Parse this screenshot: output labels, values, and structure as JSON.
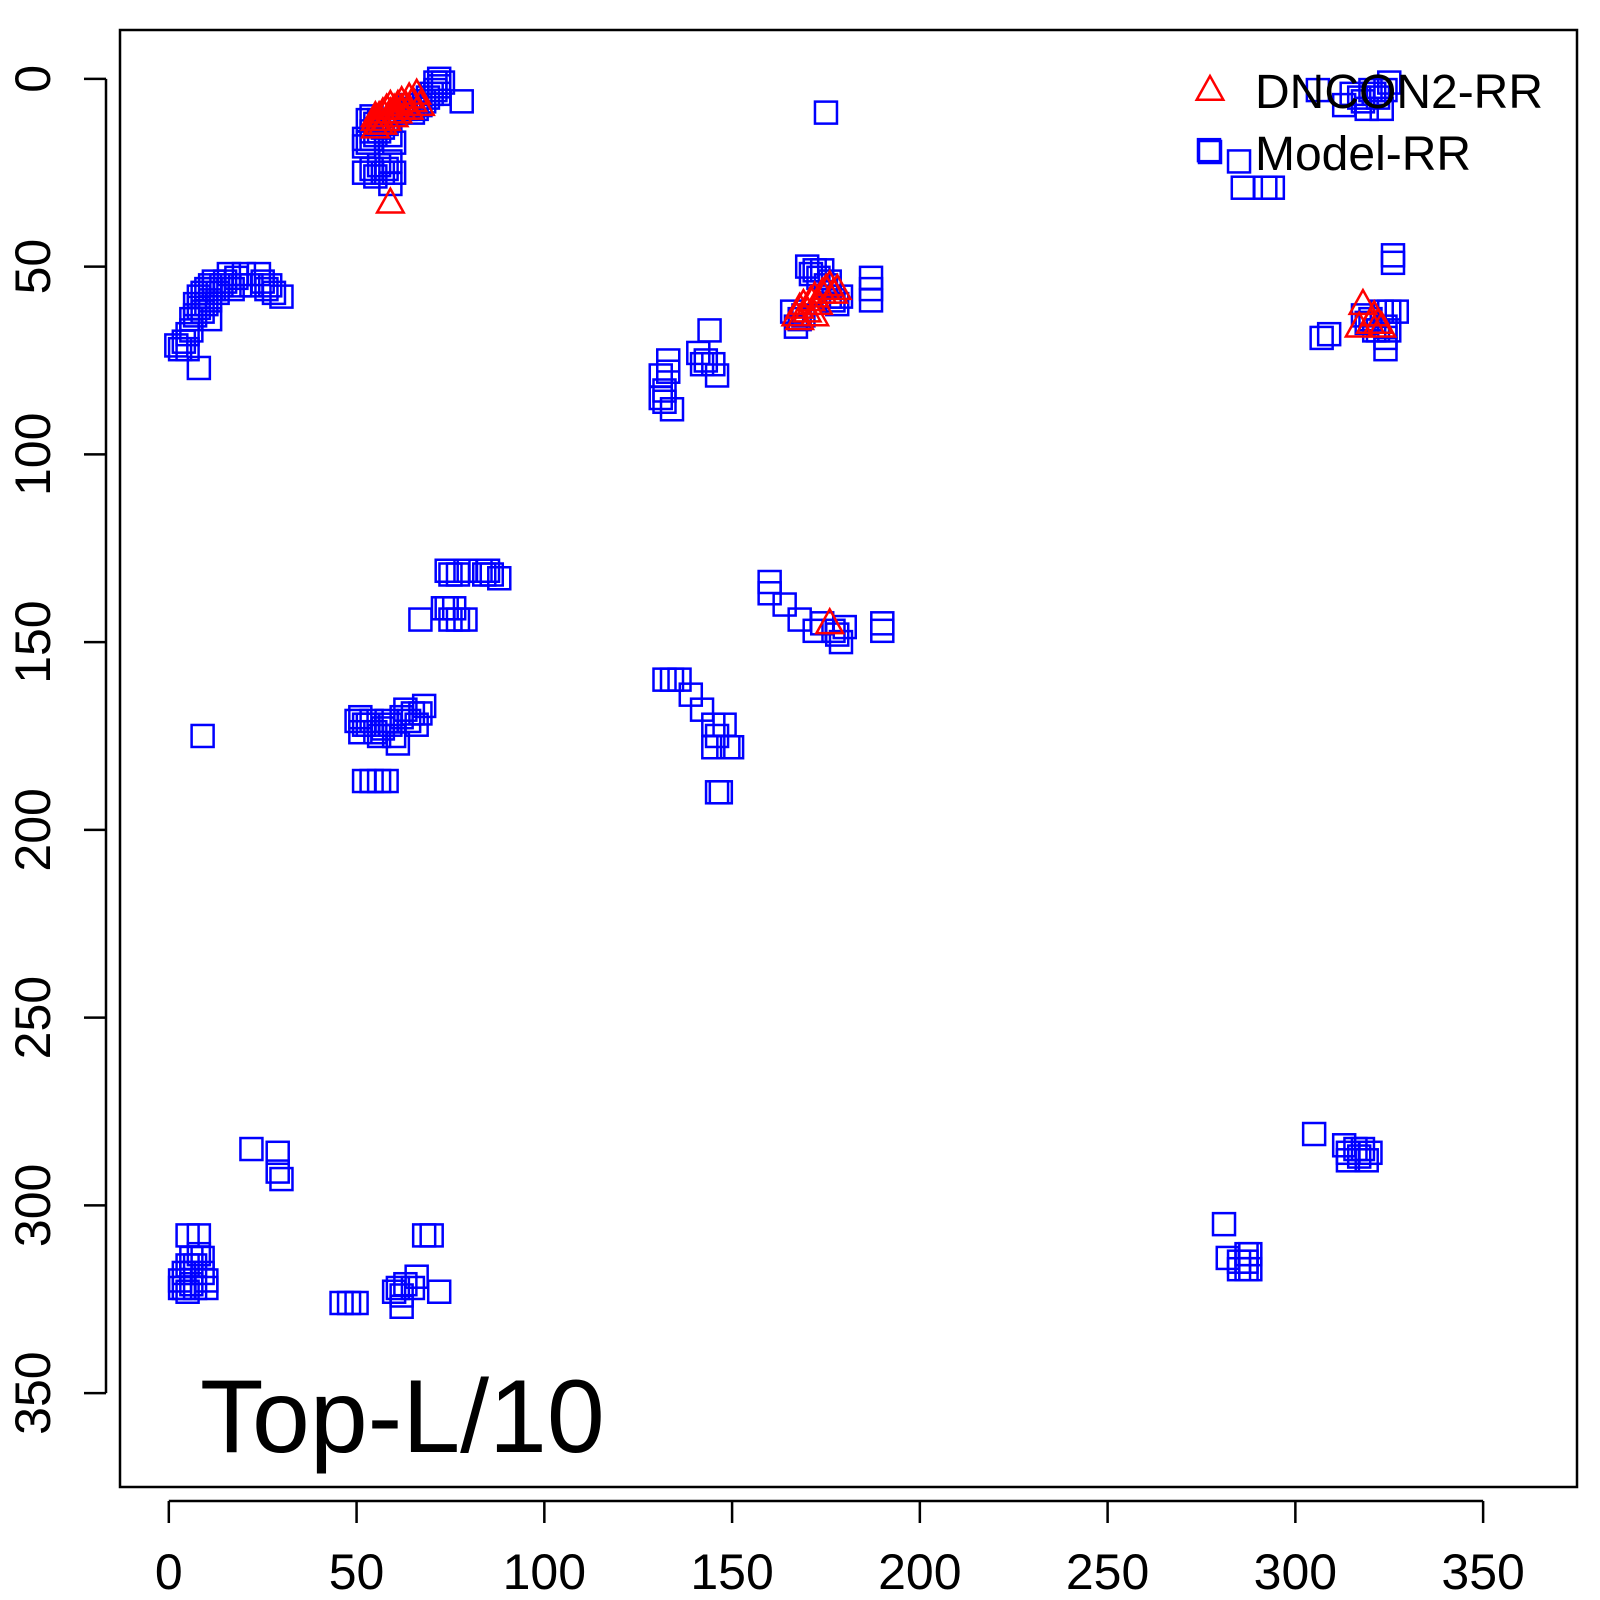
{
  "chart_data": {
    "type": "scatter",
    "title": "",
    "annotation": "Top-L/10",
    "xlim": [
      -13,
      375
    ],
    "ylim": [
      -13,
      375
    ],
    "y_inverted": true,
    "x_ticks": [
      0,
      50,
      100,
      150,
      200,
      250,
      300,
      350
    ],
    "y_ticks": [
      0,
      50,
      100,
      150,
      200,
      250,
      300,
      350
    ],
    "x_tick_labels": [
      "0",
      "50",
      "100",
      "150",
      "200",
      "250",
      "300",
      "350"
    ],
    "y_tick_labels": [
      "0",
      "50",
      "100",
      "150",
      "200",
      "250",
      "300",
      "350"
    ],
    "legend_position": "top-right",
    "series": [
      {
        "name": "DNCON2-RR",
        "marker": "triangle",
        "color": "#ff0000",
        "points": [
          [
            55,
            13
          ],
          [
            55,
            11
          ],
          [
            56,
            10
          ],
          [
            57,
            9
          ],
          [
            57,
            12
          ],
          [
            58,
            8
          ],
          [
            58,
            11
          ],
          [
            59,
            9
          ],
          [
            59,
            7
          ],
          [
            60,
            8
          ],
          [
            60,
            10
          ],
          [
            61,
            7
          ],
          [
            61,
            9
          ],
          [
            62,
            6
          ],
          [
            62,
            8
          ],
          [
            63,
            7
          ],
          [
            64,
            5
          ],
          [
            64,
            8
          ],
          [
            65,
            6
          ],
          [
            66,
            4
          ],
          [
            67,
            7
          ],
          [
            55,
            10
          ],
          [
            56,
            12
          ],
          [
            59,
            33
          ],
          [
            167,
            63
          ],
          [
            168,
            61
          ],
          [
            169,
            60
          ],
          [
            170,
            62
          ],
          [
            171,
            59
          ],
          [
            172,
            58
          ],
          [
            173,
            60
          ],
          [
            174,
            57
          ],
          [
            175,
            56
          ],
          [
            176,
            55
          ],
          [
            177,
            57
          ],
          [
            178,
            56
          ],
          [
            168,
            64
          ],
          [
            172,
            63
          ],
          [
            176,
            145
          ],
          [
            317,
            66
          ],
          [
            318,
            60
          ],
          [
            320,
            65
          ],
          [
            321,
            63
          ],
          [
            322,
            65
          ],
          [
            323,
            66
          ]
        ]
      },
      {
        "name": "Model-RR",
        "marker": "square",
        "color": "#0000ff",
        "points": [
          [
            52,
            16
          ],
          [
            52,
            18
          ],
          [
            53,
            17
          ],
          [
            54,
            14
          ],
          [
            54,
            16
          ],
          [
            55,
            12
          ],
          [
            55,
            15
          ],
          [
            56,
            14
          ],
          [
            57,
            13
          ],
          [
            58,
            12
          ],
          [
            59,
            15
          ],
          [
            60,
            17
          ],
          [
            53,
            11
          ],
          [
            54,
            10
          ],
          [
            56,
            11
          ],
          [
            52,
            25
          ],
          [
            54,
            24
          ],
          [
            55,
            26
          ],
          [
            56,
            23
          ],
          [
            57,
            25
          ],
          [
            58,
            24
          ],
          [
            59,
            28
          ],
          [
            60,
            25
          ],
          [
            59,
            22
          ],
          [
            63,
            8
          ],
          [
            64,
            7
          ],
          [
            65,
            9
          ],
          [
            66,
            8
          ],
          [
            67,
            7
          ],
          [
            68,
            6
          ],
          [
            69,
            5
          ],
          [
            70,
            4
          ],
          [
            71,
            3
          ],
          [
            71,
            1
          ],
          [
            72,
            0
          ],
          [
            72,
            2
          ],
          [
            72,
            4
          ],
          [
            73,
            1
          ],
          [
            78,
            6
          ],
          [
            175,
            9
          ],
          [
            2,
            71
          ],
          [
            3,
            72
          ],
          [
            4,
            70
          ],
          [
            5,
            72
          ],
          [
            5,
            68
          ],
          [
            6,
            67
          ],
          [
            6,
            64
          ],
          [
            7,
            63
          ],
          [
            7,
            60
          ],
          [
            8,
            61
          ],
          [
            8,
            58
          ],
          [
            9,
            57
          ],
          [
            9,
            62
          ],
          [
            10,
            60
          ],
          [
            10,
            56
          ],
          [
            11,
            59
          ],
          [
            11,
            55
          ],
          [
            12,
            56
          ],
          [
            12,
            54
          ],
          [
            13,
            57
          ],
          [
            14,
            55
          ],
          [
            15,
            54
          ],
          [
            16,
            52
          ],
          [
            17,
            56
          ],
          [
            18,
            53
          ],
          [
            19,
            55
          ],
          [
            20,
            52
          ],
          [
            22,
            55
          ],
          [
            24,
            52
          ],
          [
            25,
            54
          ],
          [
            26,
            56
          ],
          [
            27,
            55
          ],
          [
            28,
            57
          ],
          [
            30,
            58
          ],
          [
            11,
            64
          ],
          [
            8,
            77
          ],
          [
            131,
            79
          ],
          [
            131,
            85
          ],
          [
            132,
            83
          ],
          [
            132,
            86
          ],
          [
            133,
            75
          ],
          [
            133,
            78
          ],
          [
            134,
            88
          ],
          [
            141,
            73
          ],
          [
            142,
            76
          ],
          [
            143,
            75
          ],
          [
            144,
            67
          ],
          [
            145,
            76
          ],
          [
            146,
            79
          ],
          [
            166,
            62
          ],
          [
            167,
            66
          ],
          [
            168,
            64
          ],
          [
            169,
            63
          ],
          [
            170,
            50
          ],
          [
            171,
            52
          ],
          [
            172,
            51
          ],
          [
            173,
            53
          ],
          [
            174,
            51
          ],
          [
            175,
            55
          ],
          [
            176,
            54
          ],
          [
            176,
            58
          ],
          [
            177,
            59
          ],
          [
            178,
            60
          ],
          [
            179,
            58
          ],
          [
            187,
            53
          ],
          [
            187,
            56
          ],
          [
            187,
            59
          ],
          [
            160,
            134
          ],
          [
            160,
            137
          ],
          [
            164,
            140
          ],
          [
            168,
            144
          ],
          [
            172,
            147
          ],
          [
            174,
            145
          ],
          [
            177,
            147
          ],
          [
            178,
            148
          ],
          [
            179,
            150
          ],
          [
            180,
            146
          ],
          [
            190,
            145
          ],
          [
            190,
            147
          ],
          [
            9,
            175
          ],
          [
            50,
            171
          ],
          [
            51,
            170
          ],
          [
            51,
            174
          ],
          [
            52,
            172
          ],
          [
            53,
            172
          ],
          [
            54,
            171
          ],
          [
            55,
            174
          ],
          [
            56,
            175
          ],
          [
            57,
            173
          ],
          [
            58,
            171
          ],
          [
            59,
            172
          ],
          [
            60,
            175
          ],
          [
            61,
            177
          ],
          [
            62,
            170
          ],
          [
            63,
            168
          ],
          [
            64,
            171
          ],
          [
            65,
            169
          ],
          [
            66,
            172
          ],
          [
            67,
            169
          ],
          [
            68,
            167
          ],
          [
            52,
            187
          ],
          [
            54,
            187
          ],
          [
            56,
            187
          ],
          [
            58,
            187
          ],
          [
            67,
            144
          ],
          [
            73,
            141
          ],
          [
            74,
            141
          ],
          [
            75,
            144
          ],
          [
            76,
            141
          ],
          [
            77,
            144
          ],
          [
            79,
            144
          ],
          [
            74,
            131
          ],
          [
            75,
            132
          ],
          [
            77,
            132
          ],
          [
            79,
            131
          ],
          [
            83,
            131
          ],
          [
            84,
            132
          ],
          [
            85,
            131
          ],
          [
            86,
            132
          ],
          [
            88,
            133
          ],
          [
            132,
            160
          ],
          [
            134,
            160
          ],
          [
            136,
            160
          ],
          [
            139,
            164
          ],
          [
            142,
            168
          ],
          [
            145,
            172
          ],
          [
            145,
            178
          ],
          [
            146,
            175
          ],
          [
            146,
            190
          ],
          [
            147,
            190
          ],
          [
            148,
            172
          ],
          [
            149,
            178
          ],
          [
            150,
            178
          ],
          [
            3,
            322
          ],
          [
            3,
            320
          ],
          [
            4,
            318
          ],
          [
            4,
            322
          ],
          [
            5,
            316
          ],
          [
            5,
            308
          ],
          [
            5,
            323
          ],
          [
            6,
            314
          ],
          [
            6,
            318
          ],
          [
            6,
            321
          ],
          [
            7,
            316
          ],
          [
            7,
            322
          ],
          [
            8,
            308
          ],
          [
            8,
            313
          ],
          [
            9,
            318
          ],
          [
            9,
            314
          ],
          [
            10,
            320
          ],
          [
            10,
            322
          ],
          [
            22,
            285
          ],
          [
            29,
            286
          ],
          [
            29,
            291
          ],
          [
            30,
            293
          ],
          [
            46,
            326
          ],
          [
            48,
            326
          ],
          [
            50,
            326
          ],
          [
            60,
            323
          ],
          [
            61,
            322
          ],
          [
            62,
            324
          ],
          [
            62,
            327
          ],
          [
            63,
            321
          ],
          [
            65,
            322
          ],
          [
            66,
            319
          ],
          [
            68,
            308
          ],
          [
            70,
            308
          ],
          [
            72,
            323
          ],
          [
            305,
            281
          ],
          [
            313,
            284
          ],
          [
            314,
            286
          ],
          [
            314,
            288
          ],
          [
            316,
            285
          ],
          [
            317,
            287
          ],
          [
            318,
            285
          ],
          [
            319,
            288
          ],
          [
            320,
            286
          ],
          [
            281,
            305
          ],
          [
            282,
            314
          ],
          [
            285,
            315
          ],
          [
            285,
            317
          ],
          [
            287,
            313
          ],
          [
            287,
            315
          ],
          [
            287,
            317
          ],
          [
            288,
            313
          ],
          [
            288,
            317
          ],
          [
            277,
            19
          ],
          [
            285,
            22
          ],
          [
            286,
            29
          ],
          [
            292,
            29
          ],
          [
            294,
            29
          ],
          [
            306,
            3
          ],
          [
            313,
            7
          ],
          [
            315,
            4
          ],
          [
            317,
            5
          ],
          [
            318,
            6
          ],
          [
            319,
            8
          ],
          [
            320,
            3
          ],
          [
            321,
            4
          ],
          [
            322,
            5
          ],
          [
            323,
            8
          ],
          [
            324,
            3
          ],
          [
            325,
            1
          ],
          [
            307,
            69
          ],
          [
            309,
            68
          ],
          [
            318,
            63
          ],
          [
            319,
            65
          ],
          [
            320,
            64
          ],
          [
            321,
            67
          ],
          [
            322,
            67
          ],
          [
            323,
            62
          ],
          [
            324,
            66
          ],
          [
            324,
            69
          ],
          [
            324,
            72
          ],
          [
            325,
            67
          ],
          [
            325,
            62
          ],
          [
            327,
            62
          ],
          [
            326,
            47
          ],
          [
            326,
            49
          ]
        ]
      }
    ]
  }
}
